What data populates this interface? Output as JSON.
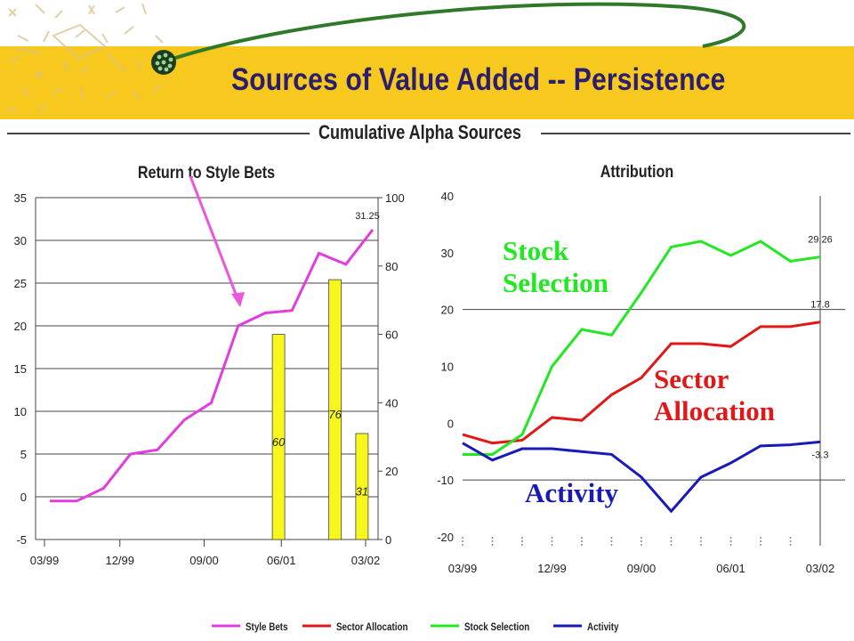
{
  "title": "Sources of Value Added -- Persistence",
  "subtitle": "Cumulative Alpha Sources",
  "colors": {
    "banner": "#f7c81e",
    "style_bets": "#e43be0",
    "sector": "#e01818",
    "stock": "#22e822",
    "activity": "#1a1ab8",
    "bars": "#f7f71e"
  },
  "annotations": {
    "stock": "Stock\nSelection",
    "sector": "Sector\nAllocation",
    "activity": "Activity"
  },
  "legend": [
    "Style Bets",
    "Sector Allocation",
    "Stock Selection",
    "Activity"
  ],
  "chart_data": [
    {
      "type": "line",
      "title": "Return to Style Bets",
      "x_ticks": [
        "03/99",
        "12/99",
        "09/00",
        "06/01",
        "03/02"
      ],
      "y_ticks": [
        "35",
        "30",
        "25",
        "20",
        "15",
        "10",
        "5",
        "0",
        "-5"
      ],
      "ylim": [
        -5,
        35
      ],
      "y2_ticks": [
        "100",
        "80",
        "60",
        "40",
        "20",
        "0"
      ],
      "y2lim": [
        0,
        100
      ],
      "grid": true,
      "series": [
        {
          "name": "Style Bets",
          "values": [
            -0.5,
            -0.5,
            1,
            5,
            5.5,
            9,
            11,
            20,
            21.5,
            21.8,
            28.5,
            27.2,
            31.25
          ]
        }
      ],
      "end_label": "31.25",
      "bars": [
        {
          "label": "60",
          "value": 60,
          "pos": 8.5
        },
        {
          "label": "76",
          "value": 76,
          "pos": 10.6
        },
        {
          "label": "31",
          "value": 31,
          "pos": 11.6
        }
      ]
    },
    {
      "type": "line",
      "title": "Attribution",
      "x_ticks": [
        "03/99",
        "12/99",
        "09/00",
        "06/01",
        "03/02"
      ],
      "y_ticks": [
        "40",
        "30",
        "20",
        "10",
        "0",
        "-10",
        "-20"
      ],
      "ylim": [
        -20,
        40
      ],
      "grid": true,
      "series": [
        {
          "name": "Sector Allocation",
          "values": [
            -2,
            -3.5,
            -3,
            1,
            0.5,
            5,
            8,
            14,
            14,
            13.5,
            17,
            17,
            17.8
          ]
        },
        {
          "name": "Stock Selection",
          "values": [
            -5.5,
            -5.5,
            -2,
            10,
            16.5,
            15.5,
            23,
            31,
            32,
            29.5,
            32,
            28.5,
            29.26
          ]
        },
        {
          "name": "Activity",
          "values": [
            -3.5,
            -6.5,
            -4.5,
            -4.5,
            -5,
            -5.5,
            -9.5,
            -15.5,
            -9.5,
            -7,
            -4,
            -3.8,
            -3.3
          ]
        }
      ],
      "end_labels": [
        "17.8",
        "29.26",
        "-3.3"
      ]
    }
  ]
}
